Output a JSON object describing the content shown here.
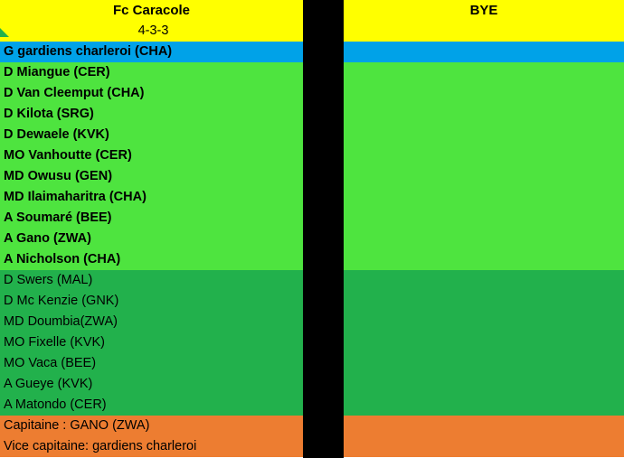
{
  "left": {
    "team_name": "Fc Caracole",
    "formation": "4-3-3",
    "goalkeeper": "G gardiens charleroi (CHA)",
    "starters": [
      "D Miangue (CER)",
      "D Van Cleemput (CHA)",
      "D Kilota (SRG)",
      "D Dewaele (KVK)",
      "MO Vanhoutte (CER)",
      "MD Owusu (GEN)",
      "MD Ilaimaharitra (CHA)",
      "A Soumaré (BEE)",
      "A Gano (ZWA)",
      "A Nicholson (CHA)"
    ],
    "subs": [
      "D Swers (MAL)",
      "D Mc Kenzie (GNK)",
      "MD Doumbia(ZWA)",
      "MO Fixelle (KVK)",
      "MO Vaca (BEE)",
      "A Gueye (KVK)",
      "A Matondo (CER)"
    ],
    "captain": "Capitaine : GANO (ZWA)",
    "vice_captain": "Vice capitaine: gardiens charleroi"
  },
  "right": {
    "team_name": "BYE"
  },
  "colors": {
    "header": "#ffff00",
    "goalkeeper": "#00a2e8",
    "starters": "#4ee43f",
    "subs": "#22b14c",
    "captains": "#ed7d31",
    "gap": "#000000"
  }
}
